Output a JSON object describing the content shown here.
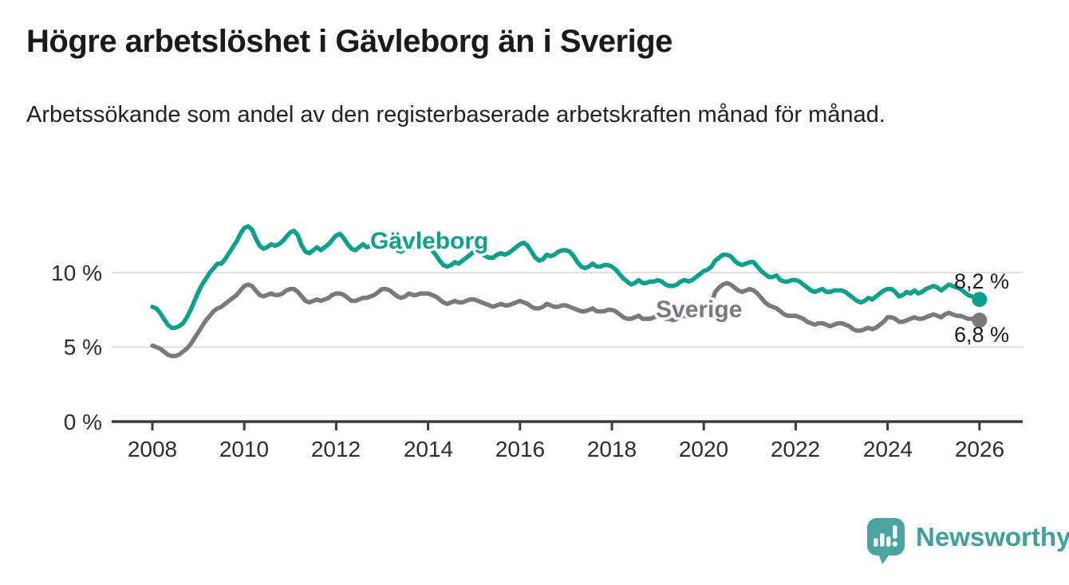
{
  "header": {
    "title": "Högre arbetslöshet i Gävleborg än i Sverige",
    "subtitle": "Arbetssökande som andel av den registerbaserade arbetskraften månad för månad."
  },
  "chart_data": {
    "type": "line",
    "title": "Högre arbetslöshet i Gävleborg än i Sverige",
    "subtitle": "Arbetssökande som andel av den registerbaserade arbetskraften månad för månad.",
    "x_start_year": 2008,
    "x_interval": "monthly",
    "x_tick_labels": [
      "2008",
      "2010",
      "2012",
      "2014",
      "2016",
      "2018",
      "2020",
      "2022",
      "2024",
      "2026"
    ],
    "y_ticks": [
      {
        "label": "0 %",
        "value": 0
      },
      {
        "label": "5 %",
        "value": 5
      },
      {
        "label": "10 %",
        "value": 10
      }
    ],
    "ylim": [
      0,
      14
    ],
    "grid": "horizontal",
    "legend_position": "inline-labels",
    "series": [
      {
        "name": "Gävleborg",
        "color": "#0DA08D",
        "end_label": "8,2 %",
        "end_value": 8.2,
        "values": [
          7.7,
          7.6,
          7.3,
          6.9,
          6.5,
          6.3,
          6.3,
          6.4,
          6.6,
          7.0,
          7.5,
          8.1,
          8.7,
          9.2,
          9.6,
          10.0,
          10.3,
          10.6,
          10.6,
          10.9,
          11.3,
          11.7,
          12.1,
          12.6,
          13.0,
          13.1,
          12.9,
          12.3,
          11.8,
          11.6,
          11.7,
          11.9,
          11.8,
          11.9,
          12.1,
          12.4,
          12.7,
          12.8,
          12.5,
          11.8,
          11.4,
          11.3,
          11.5,
          11.7,
          11.5,
          11.7,
          11.9,
          12.2,
          12.5,
          12.6,
          12.3,
          11.9,
          11.6,
          11.5,
          11.7,
          11.9,
          11.7,
          11.8,
          12.0,
          12.2,
          12.3,
          12.2,
          12.0,
          11.7,
          11.5,
          11.4,
          11.6,
          11.8,
          11.7,
          11.7,
          11.8,
          11.8,
          11.7,
          11.5,
          11.2,
          10.8,
          10.5,
          10.4,
          10.5,
          10.7,
          10.6,
          10.8,
          11.0,
          11.2,
          11.4,
          11.4,
          11.3,
          11.1,
          11.0,
          11.0,
          11.2,
          11.3,
          11.2,
          11.3,
          11.5,
          11.7,
          11.9,
          12.0,
          11.8,
          11.4,
          11.0,
          10.8,
          10.9,
          11.2,
          11.1,
          11.2,
          11.4,
          11.5,
          11.5,
          11.4,
          11.1,
          10.7,
          10.4,
          10.3,
          10.4,
          10.6,
          10.4,
          10.4,
          10.5,
          10.5,
          10.4,
          10.2,
          9.9,
          9.6,
          9.4,
          9.2,
          9.3,
          9.5,
          9.3,
          9.3,
          9.4,
          9.4,
          9.5,
          9.4,
          9.2,
          9.1,
          9.1,
          9.2,
          9.4,
          9.5,
          9.4,
          9.5,
          9.7,
          9.9,
          10.1,
          10.2,
          10.4,
          10.8,
          11.0,
          11.2,
          11.2,
          11.1,
          10.8,
          10.6,
          10.5,
          10.6,
          10.7,
          10.7,
          10.4,
          10.1,
          9.9,
          9.7,
          9.7,
          9.8,
          9.5,
          9.4,
          9.4,
          9.5,
          9.5,
          9.4,
          9.2,
          9.0,
          8.8,
          8.7,
          8.8,
          8.9,
          8.7,
          8.7,
          8.8,
          8.8,
          8.8,
          8.7,
          8.5,
          8.3,
          8.1,
          8.0,
          8.1,
          8.3,
          8.2,
          8.4,
          8.6,
          8.8,
          8.9,
          8.9,
          8.7,
          8.4,
          8.5,
          8.7,
          8.6,
          8.8,
          8.6,
          8.7,
          8.9,
          9.0,
          9.1,
          9.0,
          8.8,
          9.0,
          9.2,
          9.1,
          9.0,
          8.9,
          8.7,
          8.5,
          8.4,
          8.3,
          8.2
        ]
      },
      {
        "name": "Sverige",
        "color": "#7A797E",
        "end_label": "6,8 %",
        "end_value": 6.8,
        "values": [
          5.1,
          5.0,
          4.9,
          4.7,
          4.5,
          4.4,
          4.4,
          4.5,
          4.7,
          4.9,
          5.2,
          5.6,
          6.0,
          6.4,
          6.8,
          7.1,
          7.4,
          7.6,
          7.7,
          7.9,
          8.1,
          8.3,
          8.5,
          8.8,
          9.1,
          9.2,
          9.1,
          8.8,
          8.5,
          8.4,
          8.5,
          8.6,
          8.5,
          8.5,
          8.6,
          8.8,
          8.9,
          8.9,
          8.7,
          8.4,
          8.1,
          8.0,
          8.1,
          8.2,
          8.1,
          8.2,
          8.3,
          8.5,
          8.6,
          8.6,
          8.5,
          8.3,
          8.1,
          8.1,
          8.2,
          8.3,
          8.3,
          8.4,
          8.5,
          8.7,
          8.9,
          8.9,
          8.8,
          8.6,
          8.4,
          8.3,
          8.4,
          8.6,
          8.5,
          8.5,
          8.6,
          8.6,
          8.6,
          8.5,
          8.4,
          8.2,
          8.0,
          7.9,
          8.0,
          8.1,
          8.0,
          8.0,
          8.1,
          8.2,
          8.2,
          8.1,
          8.0,
          7.9,
          7.8,
          7.7,
          7.8,
          7.9,
          7.8,
          7.8,
          7.9,
          8.0,
          8.1,
          8.0,
          7.9,
          7.7,
          7.6,
          7.6,
          7.7,
          7.9,
          7.8,
          7.7,
          7.7,
          7.8,
          7.8,
          7.7,
          7.6,
          7.5,
          7.4,
          7.4,
          7.5,
          7.6,
          7.4,
          7.4,
          7.4,
          7.5,
          7.5,
          7.4,
          7.2,
          7.0,
          6.9,
          6.9,
          7.0,
          7.1,
          6.9,
          6.9,
          6.9,
          7.0,
          7.1,
          7.0,
          6.9,
          6.9,
          6.8,
          6.9,
          7.0,
          7.1,
          7.0,
          7.1,
          7.2,
          7.4,
          7.6,
          7.7,
          8.0,
          8.7,
          9.0,
          9.2,
          9.3,
          9.2,
          9.0,
          8.8,
          8.7,
          8.8,
          8.9,
          8.8,
          8.6,
          8.3,
          8.0,
          7.8,
          7.7,
          7.6,
          7.4,
          7.2,
          7.1,
          7.1,
          7.1,
          7.0,
          6.9,
          6.7,
          6.6,
          6.5,
          6.6,
          6.6,
          6.5,
          6.4,
          6.5,
          6.6,
          6.6,
          6.5,
          6.4,
          6.2,
          6.1,
          6.1,
          6.2,
          6.3,
          6.2,
          6.3,
          6.5,
          6.7,
          7.0,
          7.0,
          6.9,
          6.7,
          6.7,
          6.8,
          6.9,
          7.0,
          6.9,
          6.9,
          7.0,
          7.1,
          7.2,
          7.1,
          7.0,
          7.2,
          7.3,
          7.2,
          7.1,
          7.1,
          7.0,
          6.9,
          6.9,
          6.9,
          6.8
        ]
      }
    ]
  },
  "branding": {
    "logo_text": "Newsworthy",
    "logo_color": "#4AA5A1"
  }
}
